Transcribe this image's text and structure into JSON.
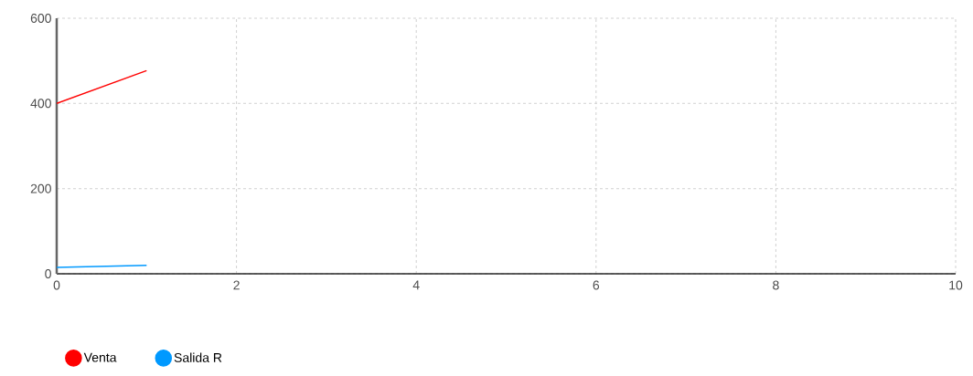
{
  "chart_data": {
    "type": "line",
    "x": [
      0,
      1
    ],
    "series": [
      {
        "name": "Venta",
        "color": "#ff0000",
        "values": [
          400,
          477
        ]
      },
      {
        "name": "Salida R",
        "color": "#0099ff",
        "values": [
          15,
          20
        ]
      }
    ],
    "xlim": [
      0,
      10
    ],
    "ylim": [
      0,
      600
    ],
    "xticks": [
      0,
      2,
      4,
      6,
      8,
      10
    ],
    "yticks": [
      0,
      200,
      400,
      600
    ],
    "grid": true,
    "legend": "bottom left",
    "marker": "none",
    "line_style": "solid"
  }
}
